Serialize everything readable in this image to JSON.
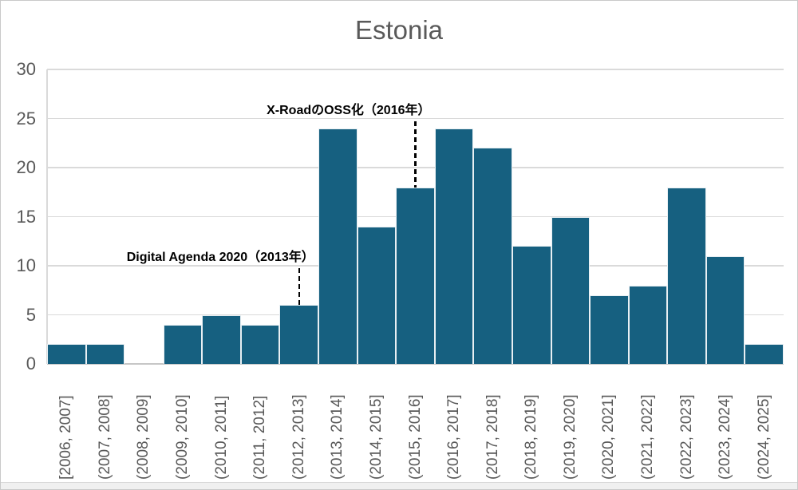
{
  "chart_data": {
    "type": "bar",
    "subtype": "histogram",
    "title": "Estonia",
    "xlabel": "",
    "ylabel": "",
    "ylim": [
      0,
      30
    ],
    "yticks": [
      0,
      5,
      10,
      15,
      20,
      25,
      30
    ],
    "grid": "horizontal",
    "legend": "none",
    "categories": [
      "[2006, 2007]",
      "(2007, 2008]",
      "(2008, 2009]",
      "(2009, 2010]",
      "(2010, 2011]",
      "(2011, 2012]",
      "(2012, 2013]",
      "(2013, 2014]",
      "(2014, 2015]",
      "(2015, 2016]",
      "(2016, 2017]",
      "(2017, 2018]",
      "(2018, 2019]",
      "(2019, 2020]",
      "(2020, 2021]",
      "(2021, 2022]",
      "(2022, 2023]",
      "(2023, 2024]",
      "(2024, 2025]"
    ],
    "values": [
      2,
      2,
      0,
      4,
      5,
      4,
      6,
      24,
      14,
      18,
      24,
      22,
      12,
      15,
      7,
      8,
      18,
      11,
      2
    ],
    "annotations": [
      {
        "text": "Digital Agenda 2020（2013年）",
        "category": "(2012, 2013]",
        "category_index": 6,
        "points_to_value": 6,
        "line_top_value": 10
      },
      {
        "text": "X-RoadのOSS化（2016年）",
        "category": "(2015, 2016]",
        "category_index": 9,
        "points_to_value": 18,
        "line_top_value": 25
      }
    ],
    "colors": {
      "bar": "#166080",
      "title": "#595959",
      "axis_labels": "#595959",
      "gridline": "#dadada",
      "axis_line": "#c6c6c6",
      "annotation_text": "#000000",
      "annotation_line": "#000000"
    }
  }
}
